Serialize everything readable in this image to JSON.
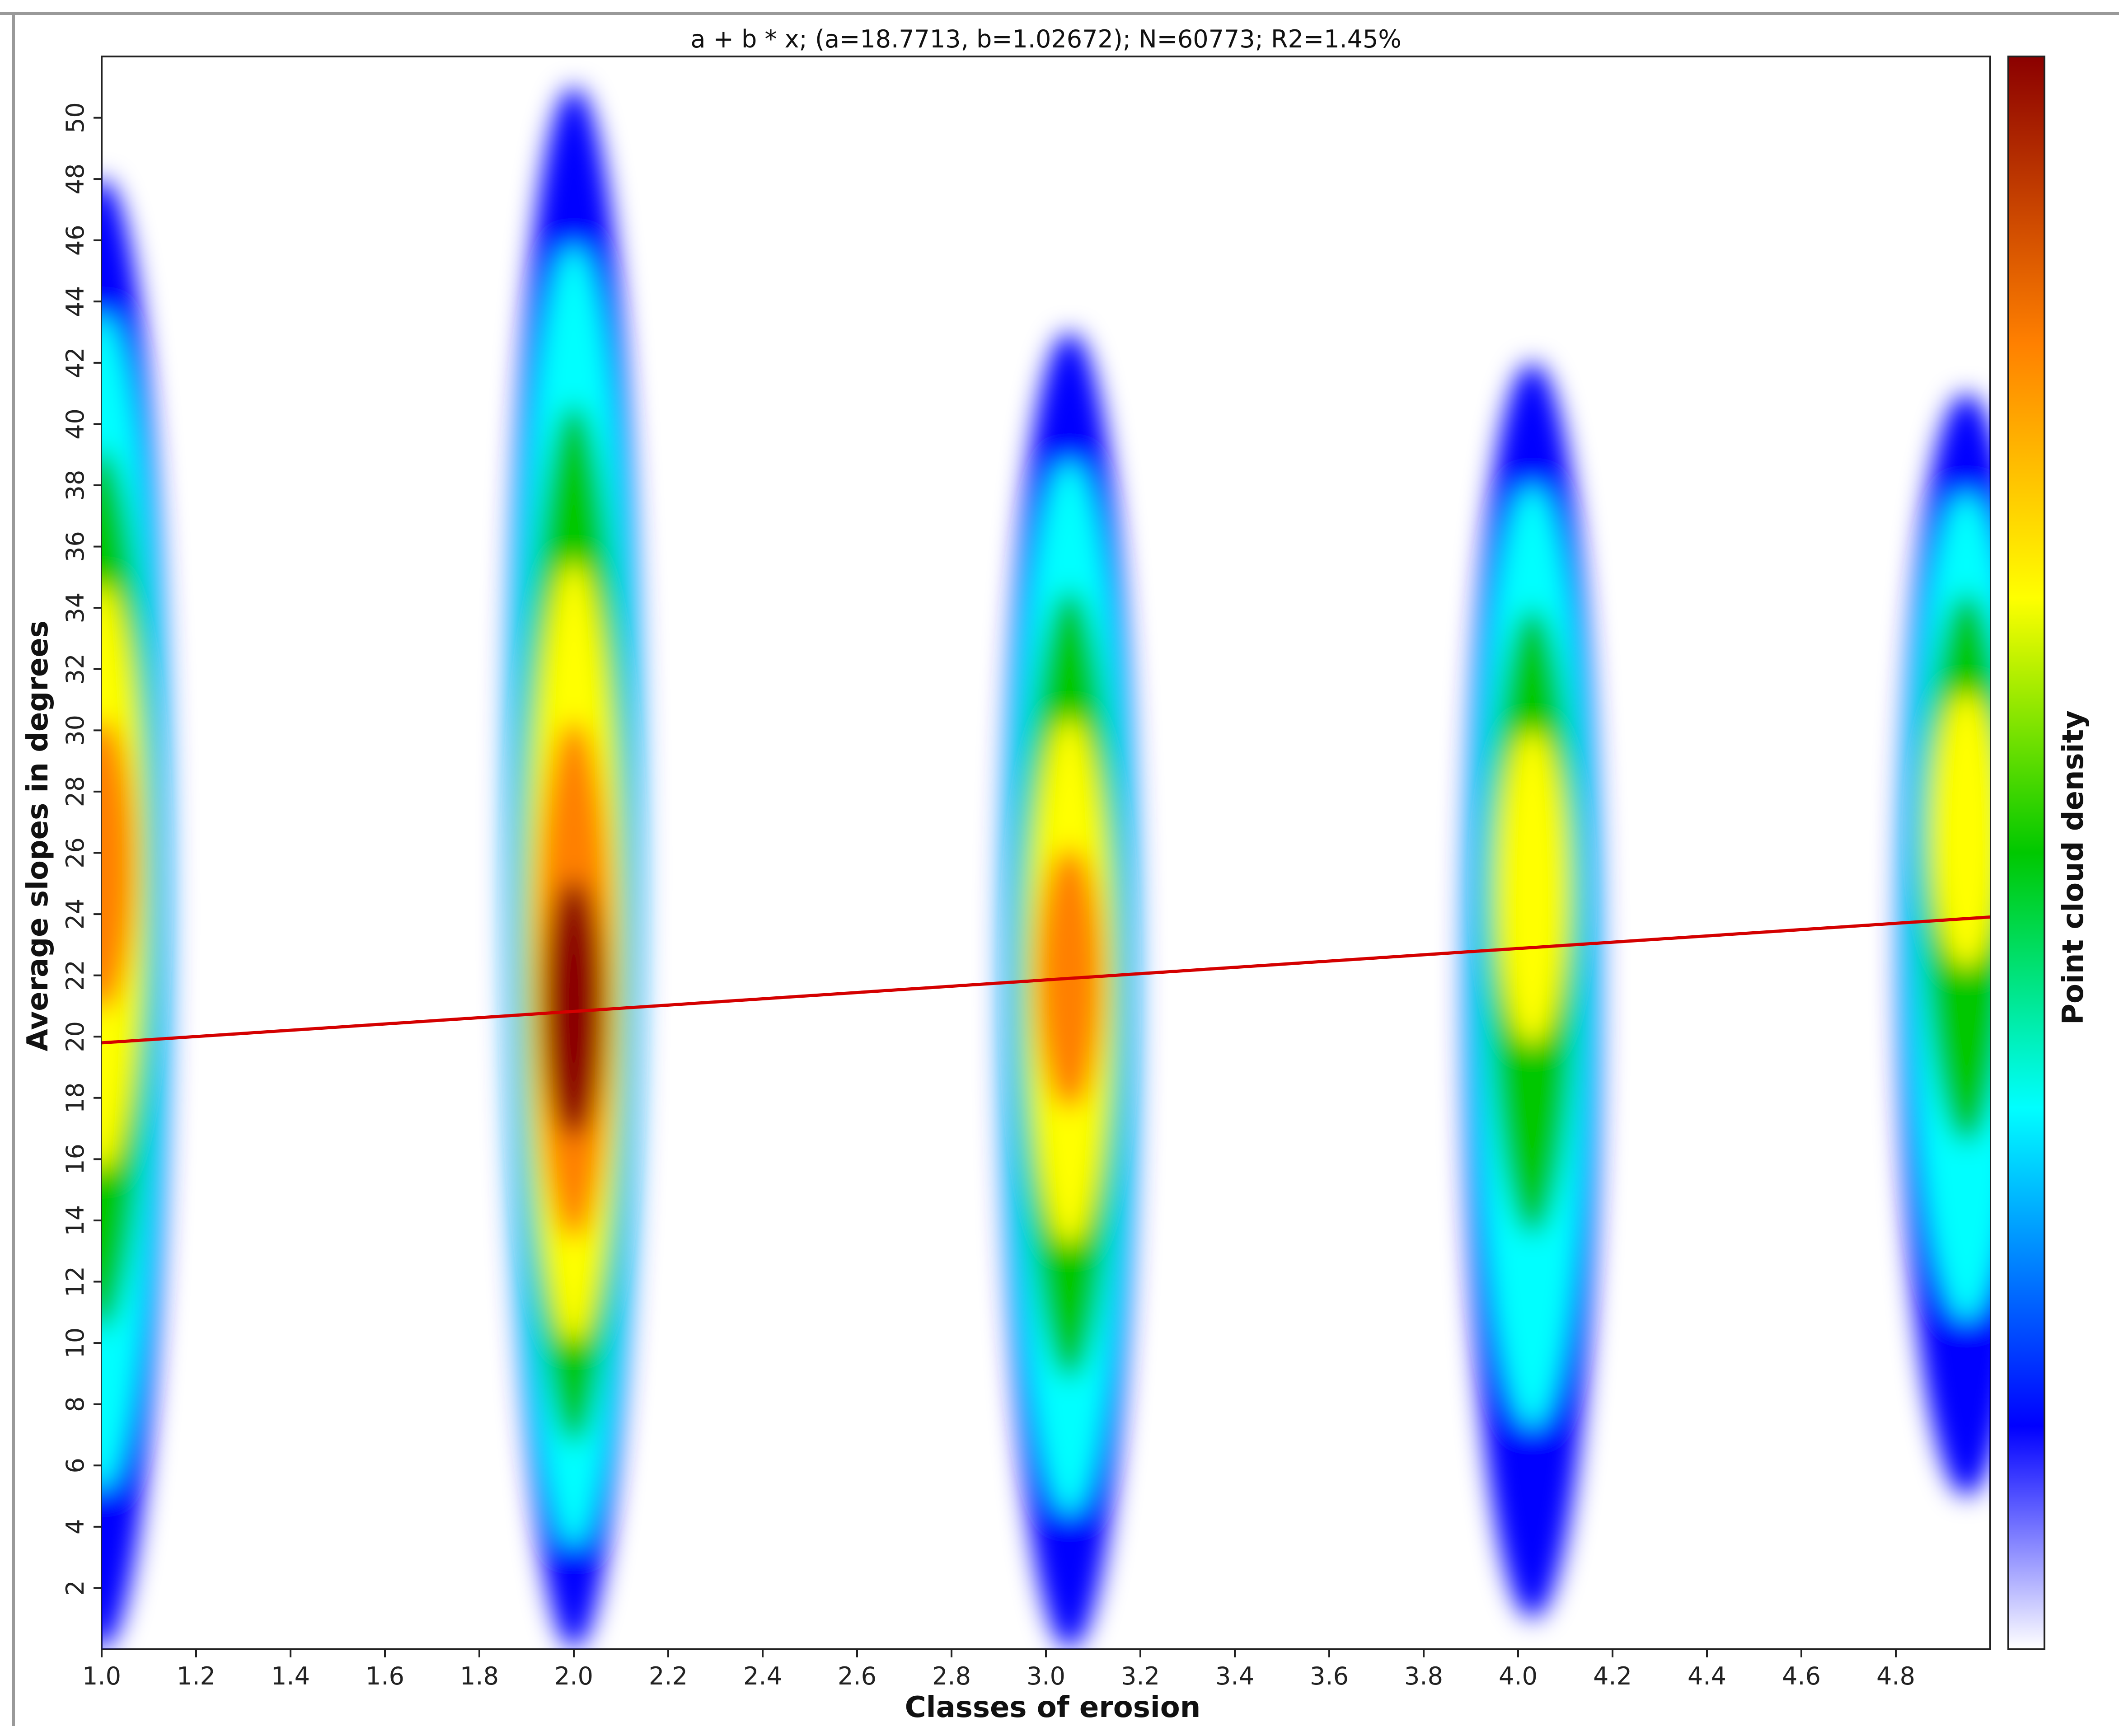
{
  "chart_data": {
    "type": "heatmap",
    "title": "a + b * x; (a=18.7713, b=1.02672); N=60773; R2=1.45%",
    "xlabel": "Classes of erosion",
    "ylabel": "Average slopes in degrees",
    "colorbar_label": "Point cloud density",
    "xlim": [
      1.0,
      5.0
    ],
    "ylim": [
      0,
      52
    ],
    "x_ticks": [
      "1.0",
      "1.2",
      "1.4",
      "1.6",
      "1.8",
      "2.0",
      "2.2",
      "2.4",
      "2.6",
      "2.8",
      "3.0",
      "3.2",
      "3.4",
      "3.6",
      "3.8",
      "4.0",
      "4.2",
      "4.4",
      "4.6",
      "4.8"
    ],
    "y_ticks": [
      "2",
      "4",
      "6",
      "8",
      "10",
      "12",
      "14",
      "16",
      "18",
      "20",
      "22",
      "24",
      "26",
      "28",
      "30",
      "32",
      "34",
      "36",
      "38",
      "40",
      "42",
      "44",
      "46",
      "48",
      "50"
    ],
    "regression": {
      "a": 18.7713,
      "b": 1.02672,
      "x_start": 1.0,
      "x_end": 5.0,
      "color": "#d40000"
    },
    "density_columns": [
      {
        "x": 1.0,
        "y_min": 0,
        "y_max": 48,
        "peak_y": 26,
        "peak_density": 0.85
      },
      {
        "x": 2.0,
        "y_min": 0,
        "y_max": 51,
        "peak_y": 20,
        "peak_density": 1.0
      },
      {
        "x": 3.05,
        "y_min": 0,
        "y_max": 43,
        "peak_y": 22,
        "peak_density": 0.85
      },
      {
        "x": 4.03,
        "y_min": 1,
        "y_max": 42,
        "peak_y": 26,
        "peak_density": 0.65
      },
      {
        "x": 4.95,
        "y_min": 5,
        "y_max": 41,
        "peak_y": 28,
        "peak_density": 0.6
      }
    ],
    "colormap": [
      "#ffffff",
      "#0000ff",
      "#00ffff",
      "#00c800",
      "#ffff00",
      "#ff8000",
      "#8b0000"
    ],
    "grid": false,
    "legend": "colorbar-right"
  }
}
